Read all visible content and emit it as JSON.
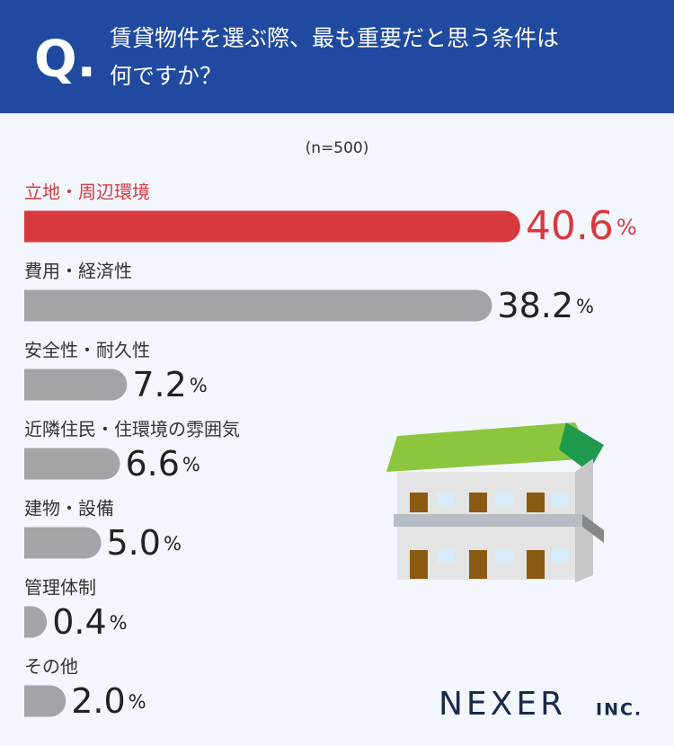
{
  "chart_data": {
    "type": "bar",
    "question_mark": "Q.",
    "title": [
      "賃貸物件を選ぶ際、最も重要だと思う条件は",
      "何ですか？"
    ],
    "subtitle": "(n=500)",
    "categories": [
      "立地・周辺環境",
      "費用・経済性",
      "安全性・耐久性",
      "近隣住民・住環境の雰囲気",
      "建物・設備",
      "管理体制",
      "その他"
    ],
    "values": [
      40.6,
      38.2,
      7.2,
      6.6,
      5.0,
      0.4,
      2.0
    ],
    "value_labels": [
      "40.6%",
      "38.2%",
      "7.2%",
      "6.6%",
      "5.0%",
      "0.4%",
      "2.0%"
    ],
    "colors": [
      "#d63a3f",
      "#a3a4a8",
      "#a3a4a8",
      "#a3a4a8",
      "#a3a4a8",
      "#a3a4a8",
      "#a3a4a8"
    ],
    "logo": [
      "NEXER",
      "INC."
    ]
  }
}
